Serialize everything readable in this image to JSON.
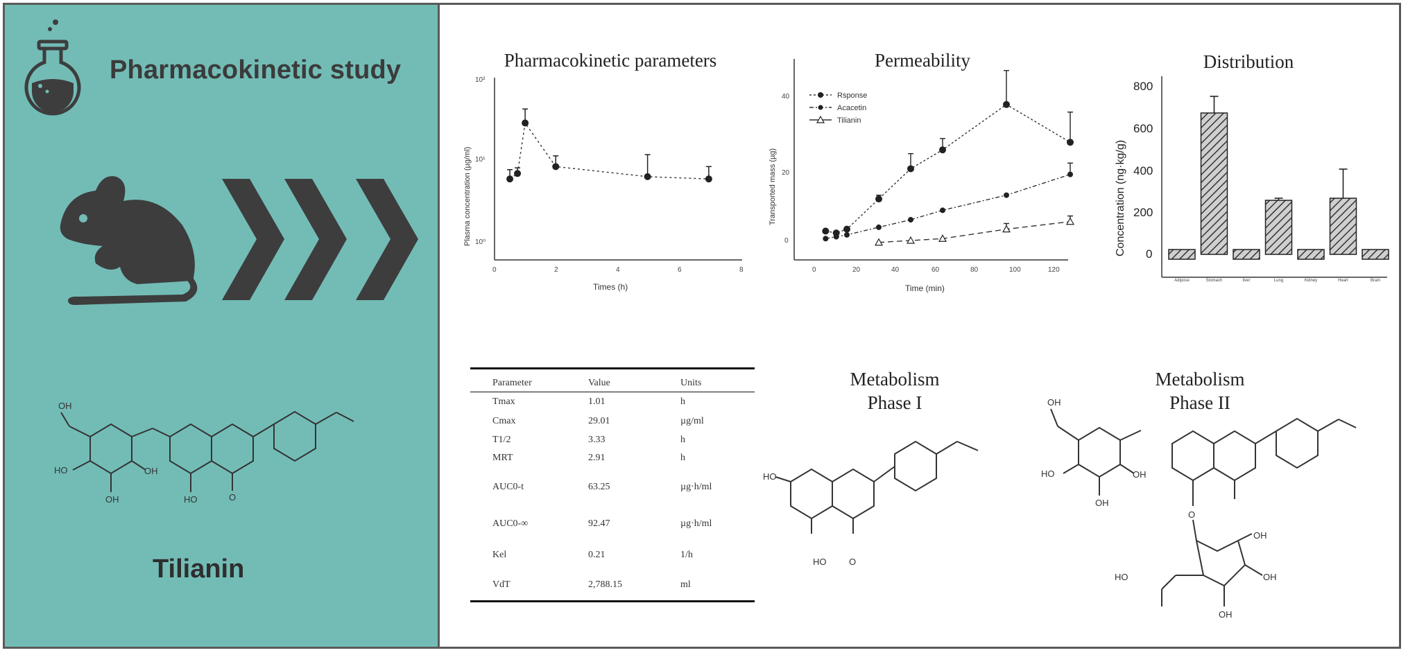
{
  "left_panel": {
    "title": "Pharmacokinetic study",
    "compound_name": "Tilianin",
    "compound_labels": {
      "oh1": "OH",
      "oh2": "HO",
      "oh3": "OH",
      "oh4": "OH",
      "oh5": "HO",
      "o": "O"
    },
    "icons": [
      "flask-icon",
      "mouse-icon",
      "chevron-right-icon"
    ],
    "background": "#73bcb6"
  },
  "pk_chart": {
    "title": "Pharmacokinetic parameters",
    "xlabel": "Times (h)",
    "ylabel": "Plasma concentration (µg/ml)",
    "yticks": [
      "10²",
      "10¹",
      "10⁰"
    ],
    "xticks": [
      "0",
      "2",
      "4",
      "6",
      "8"
    ]
  },
  "perm_chart": {
    "title": "Permeability",
    "xlabel": "Time (min)",
    "ylabel": "Transported mass (µg)",
    "yticks": [
      "40",
      "20",
      "0"
    ],
    "xticks": [
      "0",
      "20",
      "40",
      "60",
      "80",
      "100",
      "120"
    ],
    "legend": [
      "Rsponse",
      "Acacetin",
      "Tilianin"
    ]
  },
  "dist_chart": {
    "title": "Distribution",
    "ylabel": "Concentration (ng·kg/g)",
    "yticks": [
      "800",
      "600",
      "400",
      "200",
      "0"
    ],
    "xticks": [
      "Adipose",
      "Stomach",
      "liver",
      "Lung",
      "Kidney",
      "Heart",
      "Brain"
    ]
  },
  "chart_data": [
    {
      "type": "scatter",
      "title": "Pharmacokinetic parameters",
      "xlabel": "Times (h)",
      "ylabel": "Plasma concentration (µg/ml)",
      "yscale": "log",
      "xlim": [
        0,
        8
      ],
      "ylim": [
        0.5,
        100
      ],
      "series": [
        {
          "x": [
            0.5,
            0.75,
            1.0,
            2.0,
            5.0,
            7.0
          ],
          "y": [
            6.0,
            7.0,
            29.0,
            8.5,
            6.4,
            6.0
          ],
          "err": [
            1.8,
            1.2,
            14.0,
            3.0,
            5.5,
            2.5
          ]
        }
      ]
    },
    {
      "type": "line",
      "title": "Permeability",
      "xlabel": "Time (min)",
      "ylabel": "Transported mass (µg)",
      "xlim": [
        0,
        120
      ],
      "ylim": [
        -5,
        50
      ],
      "series": [
        {
          "name": "Rsponse",
          "x": [
            5,
            10,
            15,
            30,
            45,
            60,
            90,
            120
          ],
          "y": [
            2.5,
            2,
            3,
            11,
            19,
            24,
            36,
            26
          ],
          "err": [
            0,
            0,
            0,
            1,
            4,
            3,
            9,
            8
          ]
        },
        {
          "name": "Acacetin",
          "x": [
            5,
            10,
            15,
            30,
            45,
            60,
            90,
            120
          ],
          "y": [
            0.5,
            1,
            1.5,
            3.5,
            5.5,
            8,
            12,
            17.5
          ],
          "err": [
            0,
            0,
            0,
            0,
            0,
            0,
            0,
            3
          ]
        },
        {
          "name": "Tilianin",
          "x": [
            30,
            45,
            60,
            90,
            120
          ],
          "y": [
            -0.5,
            0,
            0.5,
            3,
            5
          ],
          "err": [
            0,
            0,
            0,
            1.5,
            1.5
          ]
        }
      ]
    },
    {
      "type": "bar",
      "title": "Distribution",
      "ylabel": "Concentration (ng·kg/g)",
      "categories": [
        "Adipose",
        "Stomach",
        "liver",
        "Lung",
        "Kidney",
        "Heart",
        "Brain"
      ],
      "values": [
        0,
        680,
        0,
        260,
        0,
        270,
        0
      ],
      "errors": [
        0,
        80,
        0,
        10,
        0,
        140,
        0
      ],
      "ylim": [
        -50,
        850
      ]
    }
  ],
  "table": {
    "headers": [
      "Parameter",
      "Value",
      "Units"
    ],
    "rows": [
      [
        "Tmax",
        "1.01",
        "h"
      ],
      [
        "Cmax",
        "29.01",
        "µg/ml"
      ],
      [
        "T1/2",
        "3.33",
        "h"
      ],
      [
        "MRT",
        "2.91",
        "h"
      ],
      [
        "AUC0-t",
        "63.25",
        "µg·h/ml"
      ],
      [
        "AUC0-∞",
        "92.47",
        "µg·h/ml"
      ],
      [
        "Kel",
        "0.21",
        "1/h"
      ],
      [
        "VdT",
        "2,788.15",
        "ml"
      ]
    ]
  },
  "metabolism": {
    "phase1": {
      "line1": "Metabolism",
      "line2": "Phase I",
      "labels": {
        "ho1": "HO",
        "ho2": "HO",
        "o": "O"
      }
    },
    "phase2": {
      "line1": "Metabolism",
      "line2": "Phase II",
      "labels": {
        "oh1": "OH",
        "oh2": "HO",
        "oh3": "OH",
        "oh4": "OH",
        "oh5": "OH",
        "oh6": "OH",
        "oh7": "OH",
        "ho": "HO",
        "o": "O"
      }
    }
  }
}
